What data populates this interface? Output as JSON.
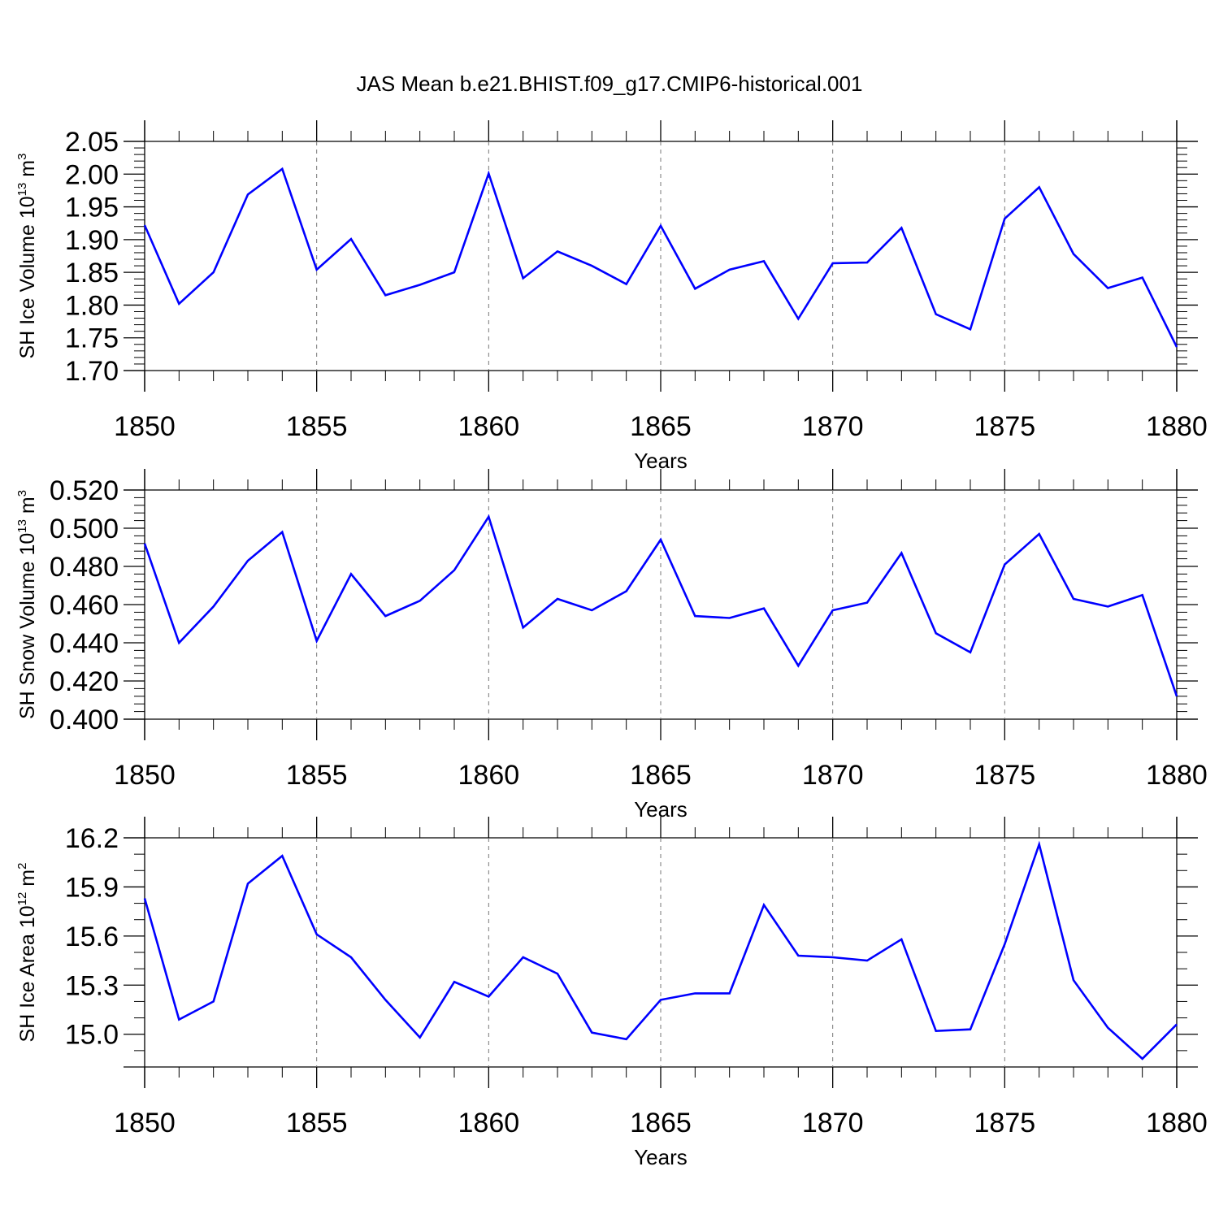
{
  "figure": {
    "title": "JAS Mean b.e21.BHIST.f09_g17.CMIP6-historical.001"
  },
  "chart_data": [
    {
      "type": "line",
      "title": "",
      "xlabel": "Years",
      "ylabel": {
        "prefix": "SH Ice Volume 10",
        "exponent": "13",
        "unit": " m",
        "unit_exponent": "3"
      },
      "xlim": [
        1850,
        1880
      ],
      "ylim": [
        1.7,
        2.05
      ],
      "x_ticks": [
        1850,
        1855,
        1860,
        1865,
        1870,
        1875,
        1880
      ],
      "x_tick_labels": [
        "1850",
        "1855",
        "1860",
        "1865",
        "1870",
        "1875",
        "1880"
      ],
      "y_ticks": [
        1.7,
        1.75,
        1.8,
        1.85,
        1.9,
        1.95,
        2.0,
        2.05
      ],
      "y_tick_labels": [
        "1.70",
        "1.75",
        "1.80",
        "1.85",
        "1.90",
        "1.95",
        "2.00",
        "2.05"
      ],
      "y_minor_step": 0.01,
      "grid": "vertical dashed",
      "line_color": "#0000ff",
      "x": [
        1850,
        1851,
        1852,
        1853,
        1854,
        1855,
        1856,
        1857,
        1858,
        1859,
        1860,
        1861,
        1862,
        1863,
        1864,
        1865,
        1866,
        1867,
        1868,
        1869,
        1870,
        1871,
        1872,
        1873,
        1874,
        1875,
        1876,
        1877,
        1878,
        1879,
        1880
      ],
      "values": [
        1.922,
        1.802,
        1.85,
        1.969,
        2.008,
        1.854,
        1.901,
        1.815,
        1.831,
        1.85,
        2.001,
        1.841,
        1.882,
        1.86,
        1.832,
        1.921,
        1.825,
        1.854,
        1.867,
        1.779,
        1.864,
        1.865,
        1.918,
        1.786,
        1.763,
        1.932,
        1.98,
        1.878,
        1.826,
        1.842,
        1.736
      ]
    },
    {
      "type": "line",
      "title": "",
      "xlabel": "Years",
      "ylabel": {
        "prefix": "SH Snow Volume 10",
        "exponent": "13",
        "unit": " m",
        "unit_exponent": "3"
      },
      "xlim": [
        1850,
        1880
      ],
      "ylim": [
        0.4,
        0.52
      ],
      "x_ticks": [
        1850,
        1855,
        1860,
        1865,
        1870,
        1875,
        1880
      ],
      "x_tick_labels": [
        "1850",
        "1855",
        "1860",
        "1865",
        "1870",
        "1875",
        "1880"
      ],
      "y_ticks": [
        0.4,
        0.42,
        0.44,
        0.46,
        0.48,
        0.5,
        0.52
      ],
      "y_tick_labels": [
        "0.400",
        "0.420",
        "0.440",
        "0.460",
        "0.480",
        "0.500",
        "0.520"
      ],
      "y_minor_step": 0.004,
      "grid": "vertical dashed",
      "line_color": "#0000ff",
      "x": [
        1850,
        1851,
        1852,
        1853,
        1854,
        1855,
        1856,
        1857,
        1858,
        1859,
        1860,
        1861,
        1862,
        1863,
        1864,
        1865,
        1866,
        1867,
        1868,
        1869,
        1870,
        1871,
        1872,
        1873,
        1874,
        1875,
        1876,
        1877,
        1878,
        1879,
        1880
      ],
      "values": [
        0.492,
        0.44,
        0.459,
        0.483,
        0.498,
        0.441,
        0.476,
        0.454,
        0.462,
        0.478,
        0.506,
        0.448,
        0.463,
        0.457,
        0.467,
        0.494,
        0.454,
        0.453,
        0.458,
        0.428,
        0.457,
        0.461,
        0.487,
        0.445,
        0.435,
        0.481,
        0.497,
        0.463,
        0.459,
        0.465,
        0.412
      ]
    },
    {
      "type": "line",
      "title": "",
      "xlabel": "Years",
      "ylabel": {
        "prefix": "SH Ice Area 10",
        "exponent": "12",
        "unit": " m",
        "unit_exponent": "2"
      },
      "xlim": [
        1850,
        1880
      ],
      "ylim": [
        14.8,
        16.2
      ],
      "x_ticks": [
        1850,
        1855,
        1860,
        1865,
        1870,
        1875,
        1880
      ],
      "x_tick_labels": [
        "1850",
        "1855",
        "1860",
        "1865",
        "1870",
        "1875",
        "1880"
      ],
      "y_ticks": [
        15.0,
        15.3,
        15.6,
        15.9,
        16.2
      ],
      "y_tick_labels": [
        "15.0",
        "15.3",
        "15.6",
        "15.9",
        "16.2"
      ],
      "y_minor_step": 0.1,
      "grid": "vertical dashed",
      "line_color": "#0000ff",
      "x": [
        1850,
        1851,
        1852,
        1853,
        1854,
        1855,
        1856,
        1857,
        1858,
        1859,
        1860,
        1861,
        1862,
        1863,
        1864,
        1865,
        1866,
        1867,
        1868,
        1869,
        1870,
        1871,
        1872,
        1873,
        1874,
        1875,
        1876,
        1877,
        1878,
        1879,
        1880
      ],
      "values": [
        15.83,
        15.09,
        15.2,
        15.92,
        16.09,
        15.61,
        15.47,
        15.21,
        14.98,
        15.32,
        15.23,
        15.47,
        15.37,
        15.01,
        14.97,
        15.21,
        15.25,
        15.25,
        15.79,
        15.48,
        15.47,
        15.45,
        15.58,
        15.02,
        15.03,
        15.55,
        16.16,
        15.33,
        15.04,
        14.85,
        15.06
      ]
    }
  ]
}
